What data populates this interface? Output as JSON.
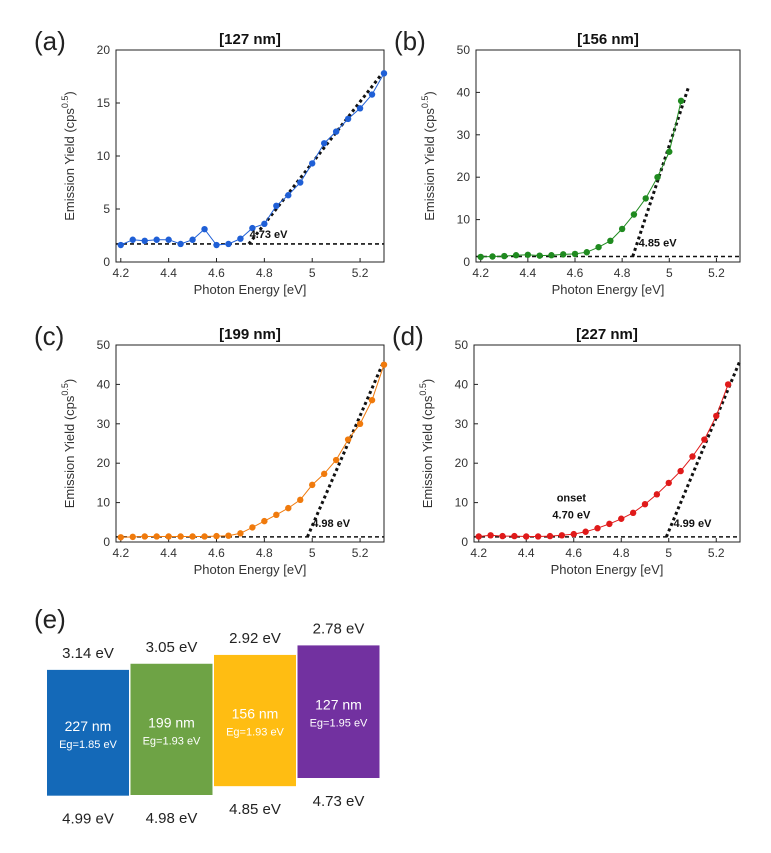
{
  "chart_data": [
    {
      "id": "a",
      "type": "scatter",
      "panel_label": "(a)",
      "title": "[127 nm]",
      "xlabel": "Photon Energy [eV]",
      "ylabel_main": "Emission Yield (cps",
      "ylabel_sup": "0.5",
      "ylabel_end": ")",
      "xlim": [
        4.18,
        5.3
      ],
      "ylim": [
        0,
        20
      ],
      "xticks": [
        "4.2",
        "4.4",
        "4.6",
        "4.8",
        "5",
        "5.2"
      ],
      "yticks": [
        "0",
        "5",
        "10",
        "15",
        "20"
      ],
      "color": "#1f5fd6",
      "series": [
        {
          "x": [
            4.2,
            4.25,
            4.3,
            4.35,
            4.4,
            4.45,
            4.5,
            4.55,
            4.6,
            4.65,
            4.7,
            4.75,
            4.8,
            4.85,
            4.9,
            4.95,
            5.0,
            5.05,
            5.1,
            5.15,
            5.2,
            5.25,
            5.3
          ],
          "y": [
            1.6,
            2.1,
            2.0,
            2.1,
            2.1,
            1.7,
            2.1,
            3.1,
            1.6,
            1.7,
            2.2,
            3.2,
            3.6,
            5.3,
            6.3,
            7.5,
            9.3,
            11.2,
            12.3,
            13.5,
            14.5,
            15.8,
            17.8
          ]
        }
      ],
      "baseline": 1.7,
      "fit_line": {
        "x": [
          4.735,
          5.3
        ],
        "y": [
          1.7,
          18.0
        ]
      },
      "annotation": "4.73 eV"
    },
    {
      "id": "b",
      "type": "scatter",
      "panel_label": "(b)",
      "title": "[156 nm]",
      "xlabel": "Photon Energy [eV]",
      "ylabel_main": "Emission Yield (cps",
      "ylabel_sup": "0.5",
      "ylabel_end": ")",
      "xlim": [
        4.18,
        5.3
      ],
      "ylim": [
        0,
        50
      ],
      "xticks": [
        "4.2",
        "4.4",
        "4.6",
        "4.8",
        "5",
        "5.2"
      ],
      "yticks": [
        "0",
        "10",
        "20",
        "30",
        "40",
        "50"
      ],
      "color": "#1f8a1f",
      "series": [
        {
          "x": [
            4.2,
            4.25,
            4.3,
            4.35,
            4.4,
            4.45,
            4.5,
            4.55,
            4.6,
            4.65,
            4.7,
            4.75,
            4.8,
            4.85,
            4.9,
            4.95,
            5.0,
            5.05
          ],
          "y": [
            1.2,
            1.3,
            1.4,
            1.6,
            1.7,
            1.5,
            1.6,
            1.8,
            1.9,
            2.3,
            3.5,
            5.0,
            7.8,
            11.2,
            15.0,
            20.0,
            26.0,
            38.0
          ]
        }
      ],
      "baseline": 1.3,
      "fit_line": {
        "x": [
          4.845,
          5.08
        ],
        "y": [
          1.3,
          41.0
        ]
      },
      "annotation": "4.85 eV"
    },
    {
      "id": "c",
      "type": "scatter",
      "panel_label": "(c)",
      "title": "[199 nm]",
      "xlabel": "Photon Energy [eV]",
      "ylabel_main": "Emission Yield (cps",
      "ylabel_sup": "0.5",
      "ylabel_end": ")",
      "xlim": [
        4.18,
        5.3
      ],
      "ylim": [
        0,
        50
      ],
      "xticks": [
        "4.2",
        "4.4",
        "4.6",
        "4.8",
        "5",
        "5.2"
      ],
      "yticks": [
        "0",
        "10",
        "20",
        "30",
        "40",
        "50"
      ],
      "color": "#f07a0c",
      "series": [
        {
          "x": [
            4.2,
            4.25,
            4.3,
            4.35,
            4.4,
            4.45,
            4.5,
            4.55,
            4.6,
            4.65,
            4.7,
            4.75,
            4.8,
            4.85,
            4.9,
            4.95,
            5.0,
            5.05,
            5.1,
            5.15,
            5.2,
            5.25,
            5.3
          ],
          "y": [
            1.2,
            1.3,
            1.4,
            1.4,
            1.4,
            1.4,
            1.4,
            1.4,
            1.5,
            1.6,
            2.2,
            3.7,
            5.3,
            6.9,
            8.6,
            10.7,
            14.5,
            17.3,
            20.8,
            26.0,
            30.0,
            36.0,
            45.0
          ]
        }
      ],
      "baseline": 1.3,
      "fit_line": {
        "x": [
          4.98,
          5.3
        ],
        "y": [
          1.3,
          46.0
        ]
      },
      "annotation": "4.98 eV"
    },
    {
      "id": "d",
      "type": "scatter",
      "panel_label": "(d)",
      "title": "[227 nm]",
      "xlabel": "Photon Energy [eV]",
      "ylabel_main": "Emission Yield (cps",
      "ylabel_sup": "0.5",
      "ylabel_end": ")",
      "xlim": [
        4.18,
        5.3
      ],
      "ylim": [
        0,
        50
      ],
      "xticks": [
        "4.2",
        "4.4",
        "4.6",
        "4.8",
        "5",
        "5.2"
      ],
      "yticks": [
        "0",
        "10",
        "20",
        "30",
        "40",
        "50"
      ],
      "color": "#e01a1a",
      "series": [
        {
          "x": [
            4.2,
            4.25,
            4.3,
            4.35,
            4.4,
            4.45,
            4.5,
            4.55,
            4.6,
            4.65,
            4.7,
            4.75,
            4.8,
            4.85,
            4.9,
            4.95,
            5.0,
            5.05,
            5.1,
            5.15,
            5.2,
            5.25
          ],
          "y": [
            1.4,
            1.7,
            1.5,
            1.5,
            1.4,
            1.4,
            1.5,
            1.7,
            2.0,
            2.6,
            3.5,
            4.6,
            5.9,
            7.4,
            9.6,
            12.1,
            15.0,
            18.0,
            21.7,
            26.0,
            32.0,
            40.0
          ]
        }
      ],
      "baseline": 1.3,
      "fit_line": {
        "x": [
          4.99,
          5.3
        ],
        "y": [
          1.3,
          46.0
        ]
      },
      "annotation": "4.99 eV",
      "annotation2": [
        "onset",
        "4.70 eV"
      ]
    }
  ],
  "band_diagram": {
    "panel_label": "(e)",
    "boxes": [
      {
        "top_label": "3.14 eV",
        "bottom_label": "4.99 eV",
        "name": "227 nm",
        "eg": "Eg=1.85 eV",
        "color": "#1469b8",
        "ionization": 4.99,
        "affinity": 3.14
      },
      {
        "top_label": "3.05 eV",
        "bottom_label": "4.98 eV",
        "name": "199 nm",
        "eg": "Eg=1.93 eV",
        "color": "#6ea345",
        "ionization": 4.98,
        "affinity": 3.05
      },
      {
        "top_label": "2.92 eV",
        "bottom_label": "4.85 eV",
        "name": "156 nm",
        "eg": "Eg=1.93 eV",
        "color": "#ffbd12",
        "ionization": 4.85,
        "affinity": 2.92
      },
      {
        "top_label": "2.78 eV",
        "bottom_label": "4.73 eV",
        "name": "127 nm",
        "eg": "Eg=1.95 eV",
        "color": "#7231a0",
        "ionization": 4.73,
        "affinity": 2.78
      }
    ]
  }
}
